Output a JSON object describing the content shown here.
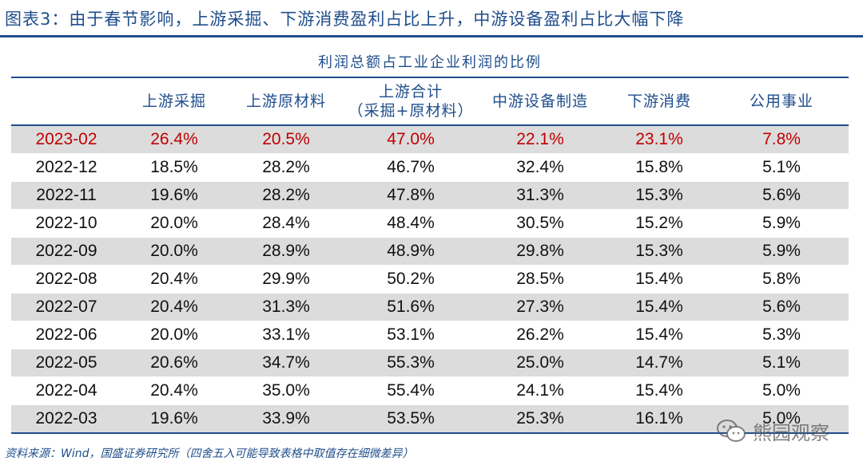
{
  "figure": {
    "title": "图表3：由于春节影响，上游采掘、下游消费盈利占比上升，中游设备盈利占比大幅下降",
    "caption": "利润总额占工业企业利润的比例",
    "source": "资料来源：Wind，国盛证券研究所（四舍五入可能导致表格中取值存在细微差异）"
  },
  "table": {
    "headers": [
      {
        "line1": "",
        "line2": ""
      },
      {
        "line1": "上游采掘",
        "line2": ""
      },
      {
        "line1": "上游原材料",
        "line2": ""
      },
      {
        "line1": "上游合计",
        "line2": "（采掘+原材料）"
      },
      {
        "line1": "中游设备制造",
        "line2": ""
      },
      {
        "line1": "下游消费",
        "line2": ""
      },
      {
        "line1": "公用事业",
        "line2": ""
      }
    ],
    "rows": [
      [
        "2023-02",
        "26.4%",
        "20.5%",
        "47.0%",
        "22.1%",
        "23.1%",
        "7.8%"
      ],
      [
        "2022-12",
        "18.5%",
        "28.2%",
        "46.7%",
        "32.4%",
        "15.8%",
        "5.1%"
      ],
      [
        "2022-11",
        "19.6%",
        "28.2%",
        "47.8%",
        "31.3%",
        "15.3%",
        "5.6%"
      ],
      [
        "2022-10",
        "20.0%",
        "28.4%",
        "48.4%",
        "30.5%",
        "15.2%",
        "5.9%"
      ],
      [
        "2022-09",
        "20.0%",
        "28.9%",
        "48.9%",
        "29.8%",
        "15.3%",
        "5.9%"
      ],
      [
        "2022-08",
        "20.4%",
        "29.9%",
        "50.2%",
        "28.5%",
        "15.4%",
        "5.8%"
      ],
      [
        "2022-07",
        "20.4%",
        "31.3%",
        "51.6%",
        "27.3%",
        "15.4%",
        "5.6%"
      ],
      [
        "2022-06",
        "20.0%",
        "33.1%",
        "53.1%",
        "26.2%",
        "15.4%",
        "5.3%"
      ],
      [
        "2022-05",
        "20.6%",
        "34.7%",
        "55.3%",
        "25.0%",
        "14.7%",
        "5.1%"
      ],
      [
        "2022-04",
        "20.4%",
        "35.0%",
        "55.4%",
        "24.1%",
        "15.4%",
        "5.0%"
      ],
      [
        "2022-03",
        "19.6%",
        "33.9%",
        "53.5%",
        "25.3%",
        "16.1%",
        "5.0%"
      ]
    ],
    "highlight_row_color": "#c00000",
    "shade_color": "#dcdcdc"
  },
  "watermark": {
    "icon": "wechat-icon",
    "text": "熊园观察"
  }
}
